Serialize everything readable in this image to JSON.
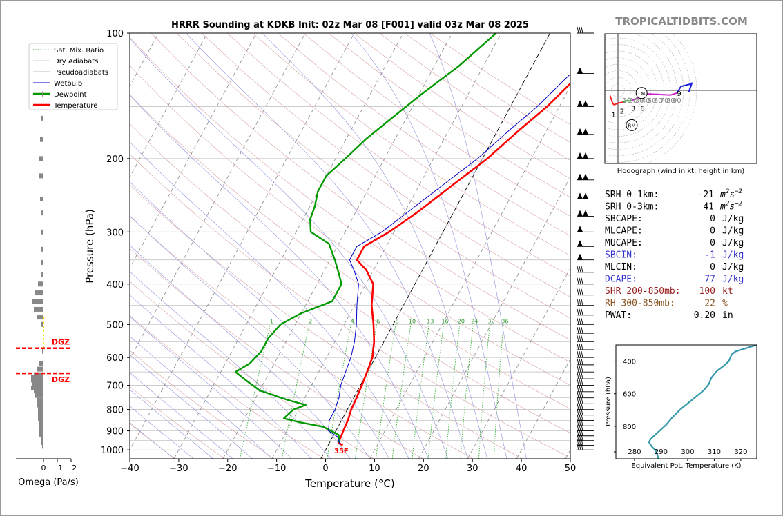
{
  "brand": "TROPICALTIDBITS.COM",
  "colors": {
    "temperature": "#ff0000",
    "dewpoint": "#009900",
    "wetbulb": "#0000cc",
    "dry_adiabat": "#d8a0a0",
    "moist_adiabat": "#9090dd",
    "mixing_ratio": "#22aa22",
    "isotherm": "#888888",
    "dgz": "#ff0000",
    "equivalent_pot": "#3399aa"
  },
  "chart_data": [
    {
      "type": "line",
      "title": "HRRR Sounding at KDKB Init: 02z Mar 08 [F001] valid 03z Mar 08 2025",
      "xlabel": "Temperature (°C)",
      "ylabel": "Pressure (hPa)",
      "xlim": [
        -40,
        50
      ],
      "ylim": [
        1050,
        100
      ],
      "y_scale": "log",
      "x_ticks": [
        "−40",
        "−30",
        "−20",
        "−10",
        "0",
        "10",
        "20",
        "30",
        "40",
        "50"
      ],
      "y_ticks": [
        "100",
        "200",
        "300",
        "400",
        "500",
        "600",
        "700",
        "800",
        "900",
        "1000"
      ],
      "legend_placement": "top-left",
      "legend": [
        "Sat. Mix. Ratio",
        "Dry Adiabats",
        "Pseudoadiabats",
        "Wetbulb",
        "Dewpoint",
        "Temperature"
      ],
      "mixing_ratio_labels": [
        "1",
        "2",
        "4",
        "6",
        "8",
        "10",
        "13",
        "16",
        "20",
        "24",
        "30",
        "36"
      ],
      "surface_label": "35F",
      "series": [
        {
          "name": "Temperature",
          "points": [
            [
              3,
              975
            ],
            [
              1.8,
              960
            ],
            [
              1.7,
              930
            ],
            [
              1.5,
              900
            ],
            [
              1.3,
              850
            ],
            [
              0.8,
              800
            ],
            [
              0.6,
              750
            ],
            [
              0.3,
              700
            ],
            [
              -0.1,
              650
            ],
            [
              -0.6,
              600
            ],
            [
              -2,
              550
            ],
            [
              -4,
              500
            ],
            [
              -6.5,
              450
            ],
            [
              -8.5,
              400
            ],
            [
              -11.5,
              370
            ],
            [
              -14.5,
              350
            ],
            [
              -14.5,
              325
            ],
            [
              -11,
              300
            ],
            [
              -7.5,
              270
            ],
            [
              -3,
              230
            ],
            [
              1,
              200
            ],
            [
              4.5,
              170
            ],
            [
              7.5,
              150
            ],
            [
              10,
              130
            ],
            [
              11,
              120
            ],
            [
              11,
              110
            ],
            [
              11,
              100
            ]
          ]
        },
        {
          "name": "Dewpoint",
          "points": [
            [
              2,
              960
            ],
            [
              1,
              920
            ],
            [
              -3,
              880
            ],
            [
              -8,
              860
            ],
            [
              -12,
              840
            ],
            [
              -11,
              800
            ],
            [
              -9,
              780
            ],
            [
              -13,
              760
            ],
            [
              -20,
              720
            ],
            [
              -24,
              680
            ],
            [
              -27,
              650
            ],
            [
              -25,
              620
            ],
            [
              -24,
              580
            ],
            [
              -24,
              540
            ],
            [
              -23,
              500
            ],
            [
              -20,
              470
            ],
            [
              -15,
              440
            ],
            [
              -15,
              400
            ],
            [
              -16.5,
              380
            ],
            [
              -19,
              350
            ],
            [
              -22,
              320
            ],
            [
              -27,
              300
            ],
            [
              -28.5,
              280
            ],
            [
              -29,
              260
            ],
            [
              -30,
              240
            ],
            [
              -30,
              220
            ],
            [
              -28,
              200
            ],
            [
              -26,
              180
            ],
            [
              -23,
              160
            ],
            [
              -19.5,
              140
            ],
            [
              -15,
              120
            ],
            [
              -11,
              100
            ]
          ]
        },
        {
          "name": "Wetbulb",
          "points": [
            [
              2.5,
              975
            ],
            [
              1,
              930
            ],
            [
              -1.5,
              900
            ],
            [
              -2.5,
              850
            ],
            [
              -2.5,
              800
            ],
            [
              -3,
              750
            ],
            [
              -4,
              700
            ],
            [
              -4.5,
              650
            ],
            [
              -5,
              600
            ],
            [
              -6,
              550
            ],
            [
              -7.5,
              500
            ],
            [
              -9.5,
              450
            ],
            [
              -11.5,
              400
            ],
            [
              -14,
              370
            ],
            [
              -16,
              350
            ],
            [
              -16,
              325
            ],
            [
              -12.5,
              300
            ],
            [
              -9.5,
              270
            ],
            [
              -5,
              230
            ],
            [
              -1,
              200
            ],
            [
              2.5,
              170
            ],
            [
              5.5,
              150
            ],
            [
              8,
              130
            ],
            [
              9.5,
              120
            ],
            [
              9.5,
              110
            ],
            [
              9.5,
              100
            ]
          ]
        }
      ],
      "wind_barbs": "stack along right axis"
    },
    {
      "type": "line",
      "title": "",
      "caption": "Hodograph (wind in kt, height in km)",
      "ring_labels": [
        "10",
        "20",
        "30",
        "40",
        "50",
        "60",
        "70",
        "80",
        "90"
      ],
      "markers": [
        "LM",
        "RM"
      ],
      "height_labels": [
        "1",
        "2",
        "3",
        "6",
        "9"
      ],
      "segments": [
        {
          "color": "#ff2222",
          "points": [
            [
              -12,
              -8
            ],
            [
              -8,
              -20
            ],
            [
              -6,
              -22
            ],
            [
              2,
              -19
            ],
            [
              8,
              -18
            ]
          ]
        },
        {
          "color": "#22aa22",
          "points": [
            [
              8,
              -18
            ],
            [
              12,
              -16
            ],
            [
              18,
              -16
            ],
            [
              22,
              -15
            ]
          ]
        },
        {
          "color": "#cc22cc",
          "points": [
            [
              22,
              -15
            ],
            [
              30,
              -12
            ],
            [
              35,
              -5
            ],
            [
              60,
              -6
            ],
            [
              80,
              -7
            ],
            [
              90,
              -4
            ]
          ]
        },
        {
          "color": "#2222dd",
          "points": [
            [
              90,
              -4
            ],
            [
              96,
              6
            ],
            [
              112,
              10
            ],
            [
              108,
              -3
            ],
            [
              113,
              12
            ]
          ]
        }
      ]
    },
    {
      "type": "bar",
      "title": "",
      "xlabel": "Omega (Pa/s)",
      "xlim": [
        2,
        -2
      ],
      "x_ticks": [
        "0",
        "−1",
        "−2"
      ],
      "dgz_label": "DGZ",
      "dgz_levels_hpa": [
        570,
        655
      ],
      "levels_hpa": [
        100,
        120,
        140,
        160,
        180,
        200,
        220,
        250,
        270,
        300,
        330,
        355,
        380,
        400,
        420,
        440,
        460,
        480,
        500,
        520,
        540,
        560,
        580,
        600,
        620,
        640,
        660,
        670,
        680,
        690,
        700,
        710,
        720,
        740,
        760,
        780,
        800,
        820,
        840,
        860,
        880,
        900,
        920,
        940,
        960,
        980,
        1000
      ],
      "omega_pa_s": [
        0.02,
        0.05,
        0.1,
        0.15,
        0.25,
        0.35,
        0.3,
        0.25,
        0.2,
        0.15,
        0.2,
        0.15,
        0.2,
        0.4,
        0.6,
        0.8,
        0.7,
        0.5,
        0.2,
        0.05,
        0.05,
        0.05,
        0.1,
        0.05,
        0.3,
        0.5,
        0.7,
        0.9,
        0.9,
        0.8,
        0.8,
        0.9,
        0.7,
        0.6,
        0.5,
        0.5,
        0.4,
        0.4,
        0.4,
        0.3,
        0.3,
        0.3,
        0.3,
        0.2,
        0.15,
        0.1,
        0.05
      ]
    },
    {
      "type": "line",
      "title": "",
      "xlabel": "Equivalent Pot. Temperature (K)",
      "ylabel": "Pressure (hPa)",
      "xlim": [
        273,
        326
      ],
      "ylim": [
        1000,
        300
      ],
      "x_ticks": [
        "280",
        "290",
        "300",
        "310",
        "320"
      ],
      "y_ticks": [
        "400",
        "600",
        "800"
      ],
      "series": [
        {
          "name": "",
          "points": [
            [
              289,
              1000
            ],
            [
              288.5,
              970
            ],
            [
              288,
              950
            ],
            [
              286.5,
              925
            ],
            [
              285.5,
              900
            ],
            [
              286,
              880
            ],
            [
              288,
              850
            ],
            [
              290,
              820
            ],
            [
              292,
              790
            ],
            [
              294,
              750
            ],
            [
              297,
              700
            ],
            [
              300,
              660
            ],
            [
              303,
              620
            ],
            [
              306,
              580
            ],
            [
              308,
              540
            ],
            [
              309,
              500
            ],
            [
              311,
              460
            ],
            [
              313.5,
              430
            ],
            [
              315.5,
              400
            ],
            [
              316,
              380
            ],
            [
              316.5,
              360
            ],
            [
              318,
              340
            ],
            [
              322,
              320
            ],
            [
              326,
              300
            ]
          ]
        }
      ]
    }
  ],
  "stats": [
    {
      "label": "SRH 0-1km:",
      "value": "-21",
      "unit_base": "m",
      "unit_sup1": "2",
      "unit_mid": "s",
      "unit_sup2": "−2",
      "color": "#000000"
    },
    {
      "label": "SRH 0-3km:",
      "value": "41",
      "unit_base": "m",
      "unit_sup1": "2",
      "unit_mid": "s",
      "unit_sup2": "−2",
      "color": "#000000"
    },
    {
      "label": "SBCAPE:",
      "value": "0",
      "unit": "J/kg",
      "color": "#000000"
    },
    {
      "label": "MLCAPE:",
      "value": "0",
      "unit": "J/kg",
      "color": "#000000"
    },
    {
      "label": "MUCAPE:",
      "value": "0",
      "unit": "J/kg",
      "color": "#000000"
    },
    {
      "label": "SBCIN:",
      "value": "-1",
      "unit": "J/kg",
      "color": "#3333cc"
    },
    {
      "label": "MLCIN:",
      "value": "0",
      "unit": "J/kg",
      "color": "#000000"
    },
    {
      "label": "DCAPE:",
      "value": "77",
      "unit": "J/kg",
      "color": "#3333cc"
    },
    {
      "label": "SHR 200-850mb:",
      "value": "100",
      "unit": "kt",
      "color": "#992222"
    },
    {
      "label": "RH 300-850mb:",
      "value": "22",
      "unit": "%",
      "color": "#885522"
    },
    {
      "label": "PWAT:",
      "value": "0.20",
      "unit": "in",
      "color": "#000000"
    }
  ]
}
